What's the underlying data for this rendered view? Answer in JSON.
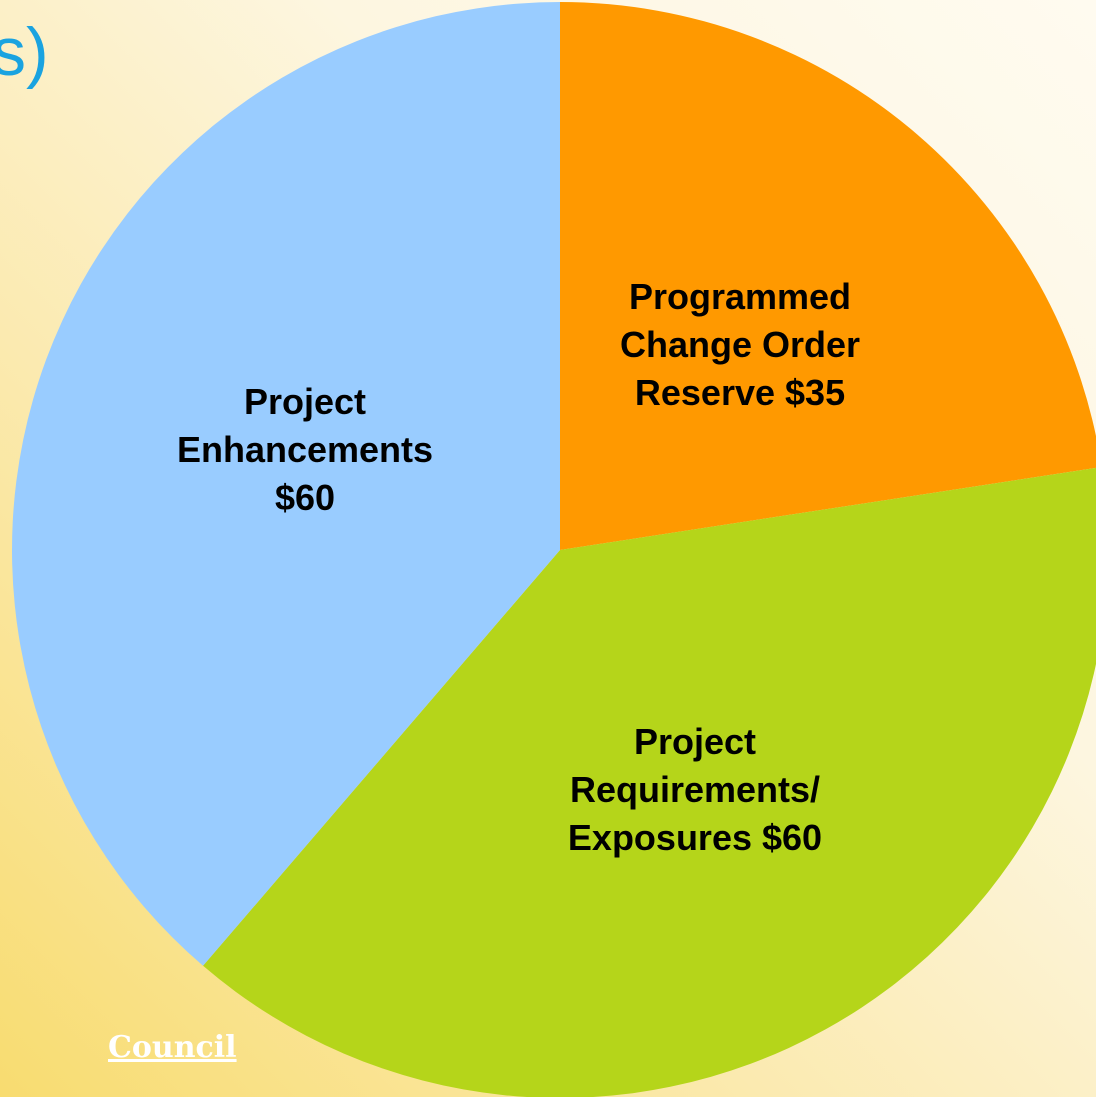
{
  "chart_data": {
    "type": "pie",
    "title": "s)",
    "footer": "Council",
    "categories": [
      "Programmed Change Order Reserve",
      "Project Requirements/ Exposures",
      "Project Enhancements"
    ],
    "values": [
      35,
      60,
      60
    ],
    "value_labels": [
      "$35",
      "$60",
      "$60"
    ],
    "colors": [
      "#ff9900",
      "#b5d51a",
      "#99ccff"
    ]
  }
}
